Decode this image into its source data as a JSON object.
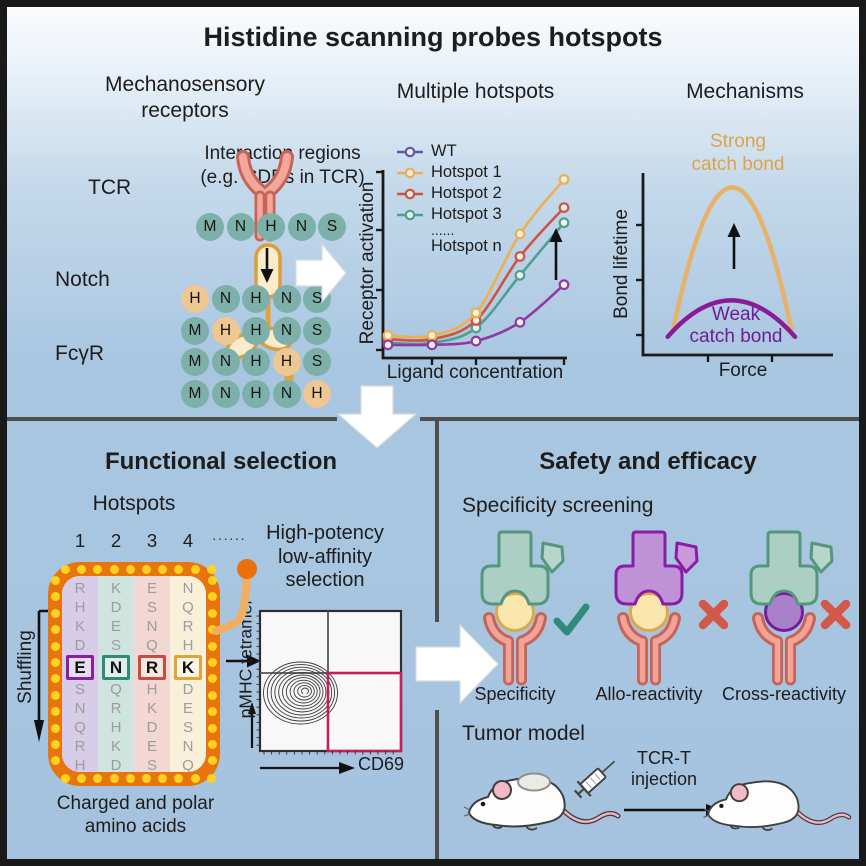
{
  "main_title": "Histidine scanning probes hotspots",
  "colors": {
    "background_blue": "#a9c6e1",
    "teal_circle": "#7db0a8",
    "orange_circle": "#eec793",
    "tcr_fill": "#f2a79a",
    "tcr_stroke": "#c4645a",
    "notch_fill": "#f8ecca",
    "notch_stroke": "#dd9d3e",
    "slot_border": "#e8740f",
    "slot_dots": "#ffd21e",
    "gate_magenta": "#c22060",
    "divider_gray": "#4f4f4f"
  },
  "top_panel": {
    "receptors_heading": {
      "line1": "Mechanosensory",
      "line2": "receptors"
    },
    "receptor_labels": [
      "TCR",
      "Notch",
      "FcγR"
    ],
    "interaction_heading": {
      "line1": "Interaction regions",
      "line2": "(e.g. CDRs in TCR)"
    },
    "scan_grid": {
      "original": [
        "M",
        "N",
        "H",
        "N",
        "S"
      ],
      "variants": [
        {
          "letters": [
            "H",
            "N",
            "H",
            "N",
            "S"
          ],
          "highlight": 0
        },
        {
          "letters": [
            "M",
            "H",
            "H",
            "N",
            "S"
          ],
          "highlight": 1
        },
        {
          "letters": [
            "M",
            "N",
            "H",
            "H",
            "S"
          ],
          "highlight": 3
        },
        {
          "letters": [
            "M",
            "N",
            "H",
            "N",
            "H"
          ],
          "highlight": 4
        }
      ]
    },
    "hotspots_heading": "Multiple hotspots",
    "mechanisms_heading": "Mechanisms"
  },
  "chart_data": [
    {
      "id": "dose_response",
      "type": "line",
      "title": "Multiple hotspots",
      "xlabel": "Ligand concentration",
      "ylabel": "Receptor activation",
      "x": [
        1,
        2,
        3,
        4,
        5
      ],
      "axis_tick_labels": false,
      "series": [
        {
          "name": "WT",
          "color": "#8e3a9f",
          "legend_color": "#5c59a8",
          "values": [
            0.07,
            0.07,
            0.09,
            0.19,
            0.39
          ]
        },
        {
          "name": "Hotspot 1",
          "color": "#ecb050",
          "values": [
            0.12,
            0.12,
            0.24,
            0.66,
            0.95
          ]
        },
        {
          "name": "Hotspot 2",
          "color": "#cd5345",
          "values": [
            0.1,
            0.1,
            0.2,
            0.54,
            0.8
          ]
        },
        {
          "name": "Hotspot 3",
          "color": "#4f9f8f",
          "values": [
            0.08,
            0.08,
            0.16,
            0.44,
            0.72
          ]
        }
      ],
      "legend_extra": [
        "......",
        "Hotspot n"
      ],
      "annotation": "black up arrow near curve endpoints",
      "legend_position": "top-left inside"
    },
    {
      "id": "catch_bond",
      "type": "line",
      "title": "Mechanisms",
      "xlabel": "Force",
      "ylabel": "Bond lifetime",
      "axis_tick_labels": false,
      "curves": [
        {
          "name": "Strong catch bond",
          "color": "#e6b269",
          "label_color": "#dfa245",
          "peak": 0.92,
          "span": [
            0.16,
            0.78
          ],
          "base": 0.145,
          "label_lines": [
            "Strong",
            "catch bond"
          ]
        },
        {
          "name": "Weak catch bond",
          "color": "#8a1b96",
          "label_color": "#6f1d93",
          "peak": 0.3,
          "span": [
            0.13,
            0.8
          ],
          "base": 0.1,
          "label_lines": [
            "Weak",
            "catch bond"
          ]
        }
      ],
      "annotation": "black up arrow from weak to strong curve"
    },
    {
      "id": "flow_cytometry",
      "type": "contour",
      "xlabel": "CD69",
      "ylabel": "pMHC tetramer",
      "population_center": [
        0.33,
        0.41
      ],
      "gate": "lower-right quadrant, magenta rectangle",
      "quadrant_cross": [
        0.48,
        0.56
      ]
    }
  ],
  "functional_panel": {
    "title": "Functional selection",
    "hotspots_label": "Hotspots",
    "column_numbers": [
      "1",
      "2",
      "3",
      "4"
    ],
    "ellipsis": "······",
    "shuffling_label": "Shuffling",
    "slot_machine": {
      "columns": [
        {
          "letters": [
            "R",
            "H",
            "K",
            "D",
            "E",
            "S",
            "N",
            "Q",
            "R",
            "H"
          ],
          "selected": 4,
          "accent": "#8b1f9e",
          "tint": "#d8cde8"
        },
        {
          "letters": [
            "K",
            "D",
            "E",
            "S",
            "N",
            "Q",
            "R",
            "H",
            "K",
            "D"
          ],
          "selected": 4,
          "accent": "#2f8b78",
          "tint": "#cfe4de"
        },
        {
          "letters": [
            "E",
            "S",
            "N",
            "Q",
            "R",
            "H",
            "K",
            "D",
            "E",
            "S"
          ],
          "selected": 4,
          "accent": "#c44d3e",
          "tint": "#f2d7d2"
        },
        {
          "letters": [
            "N",
            "Q",
            "R",
            "H",
            "K",
            "D",
            "E",
            "S",
            "N",
            "Q"
          ],
          "selected": 4,
          "accent": "#e2a33c",
          "tint": "#f8f0d8"
        }
      ],
      "selected_sequence": "ENRK"
    },
    "caption": {
      "line1": "Charged and polar",
      "line2": "amino acids"
    },
    "selection_heading": {
      "line1": "High-potency",
      "line2": "low-affinity",
      "line3": "selection"
    },
    "flow_labels": {
      "y": "pMHC tetramer",
      "x": "CD69"
    }
  },
  "safety_panel": {
    "title": "Safety and efficacy",
    "screening_heading": "Specificity screening",
    "complexes": [
      {
        "label": "Specificity",
        "verdict": "check",
        "mhc": "#abd0c3",
        "mhc_stroke": "#55967f",
        "peptide": "#fbe7ae",
        "peptide_stroke": "#d8a94f",
        "shield": "#b5d6c8"
      },
      {
        "label": "Allo-reactivity",
        "verdict": "cross",
        "mhc": "#bf92d8",
        "mhc_stroke": "#8a1da5",
        "peptide": "#fbe7ae",
        "peptide_stroke": "#d8a94f",
        "shield": "#c99ad8",
        "shield_stroke": "#8a1da5"
      },
      {
        "label": "Cross-reactivity",
        "verdict": "cross",
        "mhc": "#abd0c3",
        "mhc_stroke": "#55967f",
        "peptide": "#a981cb",
        "peptide_stroke": "#741d99",
        "shield": "#b5d6c8"
      }
    ],
    "check_color": "#2f8b7b",
    "cross_color": "#d4584a",
    "tumor_heading": "Tumor model",
    "injection_label": {
      "line1": "TCR-T",
      "line2": "injection"
    }
  }
}
